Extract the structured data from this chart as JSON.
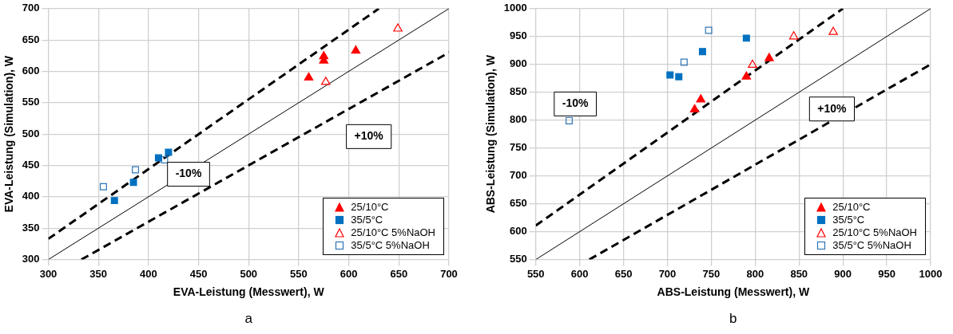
{
  "chart_data": [
    {
      "type": "scatter",
      "xlabel": "EVA-Leistung (Messwert), W",
      "ylabel": "EVA-Leistung (Simulation), W",
      "xlim": [
        300,
        700
      ],
      "ylim": [
        300,
        700
      ],
      "xticks": [
        300,
        350,
        400,
        450,
        500,
        550,
        600,
        650,
        700
      ],
      "yticks": [
        300,
        350,
        400,
        450,
        500,
        550,
        600,
        650,
        700
      ],
      "grid": true,
      "legend": "bottom right",
      "series": [
        {
          "name": "25/10°C",
          "color": "#ff0000",
          "marker": "triangle",
          "x": [
            560,
            575,
            575,
            607
          ],
          "values": [
            590,
            624,
            617,
            633
          ]
        },
        {
          "name": "35/5°C",
          "color": "#0070c0",
          "marker": "square",
          "x": [
            366,
            385,
            410,
            420
          ],
          "values": [
            394,
            423,
            462,
            471
          ]
        },
        {
          "name": "25/10°C 5%NaOH",
          "color": "#ff0000",
          "marker": "triangle",
          "x": [
            577,
            649
          ],
          "values": [
            583,
            668
          ]
        },
        {
          "name": "35/5°C 5%NaOH",
          "color": "#2e75b6",
          "marker": "square",
          "x": [
            355,
            387,
            416
          ],
          "values": [
            416,
            443,
            459
          ]
        },
        {
          "type": "line",
          "color": "#000000",
          "line_style": "solid",
          "marker": "none",
          "x": [
            300,
            700
          ],
          "values": [
            300,
            700
          ]
        },
        {
          "type": "line",
          "color": "#000000",
          "line_style": "dashed",
          "marker": "none",
          "x": [
            300,
            630
          ],
          "values": [
            333,
            700
          ]
        },
        {
          "type": "line",
          "color": "#000000",
          "line_style": "dashed",
          "marker": "none",
          "x": [
            333,
            700
          ],
          "values": [
            300,
            630
          ]
        }
      ],
      "annotations": [
        "-10%",
        "+10%",
        "a"
      ]
    },
    {
      "type": "scatter",
      "xlabel": "ABS-Leistung (Messwert), W",
      "ylabel": "ABS-Leistung (Simulation), W",
      "xlim": [
        550,
        1000
      ],
      "ylim": [
        550,
        1000
      ],
      "xticks": [
        550,
        600,
        650,
        700,
        750,
        800,
        850,
        900,
        950,
        1000
      ],
      "yticks": [
        550,
        600,
        650,
        700,
        750,
        800,
        850,
        900,
        950,
        1000
      ],
      "grid": true,
      "legend": "bottom right",
      "series": [
        {
          "name": "25/10°C",
          "color": "#ff0000",
          "marker": "triangle",
          "x": [
            731,
            738,
            790,
            816
          ],
          "values": [
            819,
            837,
            878,
            911
          ]
        },
        {
          "name": "35/5°C",
          "color": "#0070c0",
          "marker": "square",
          "x": [
            703,
            713,
            740,
            790
          ],
          "values": [
            881,
            878,
            923,
            947
          ]
        },
        {
          "name": "25/10°C 5%NaOH",
          "color": "#ff0000",
          "marker": "triangle",
          "x": [
            797,
            844,
            889
          ],
          "values": [
            899,
            950,
            958
          ]
        },
        {
          "name": "35/5°C 5%NaOH",
          "color": "#2e75b6",
          "marker": "square",
          "x": [
            588,
            719,
            747
          ],
          "values": [
            799,
            904,
            961
          ]
        },
        {
          "type": "line",
          "color": "#000000",
          "line_style": "solid",
          "marker": "none",
          "x": [
            550,
            1000
          ],
          "values": [
            550,
            1000
          ]
        },
        {
          "type": "line",
          "color": "#000000",
          "line_style": "dashed",
          "marker": "none",
          "x": [
            550,
            900
          ],
          "values": [
            611,
            1000
          ]
        },
        {
          "type": "line",
          "color": "#000000",
          "line_style": "dashed",
          "marker": "none",
          "x": [
            611,
            1000
          ],
          "values": [
            550,
            900
          ]
        }
      ],
      "annotations": [
        "-10%",
        "+10%",
        "b"
      ]
    }
  ]
}
